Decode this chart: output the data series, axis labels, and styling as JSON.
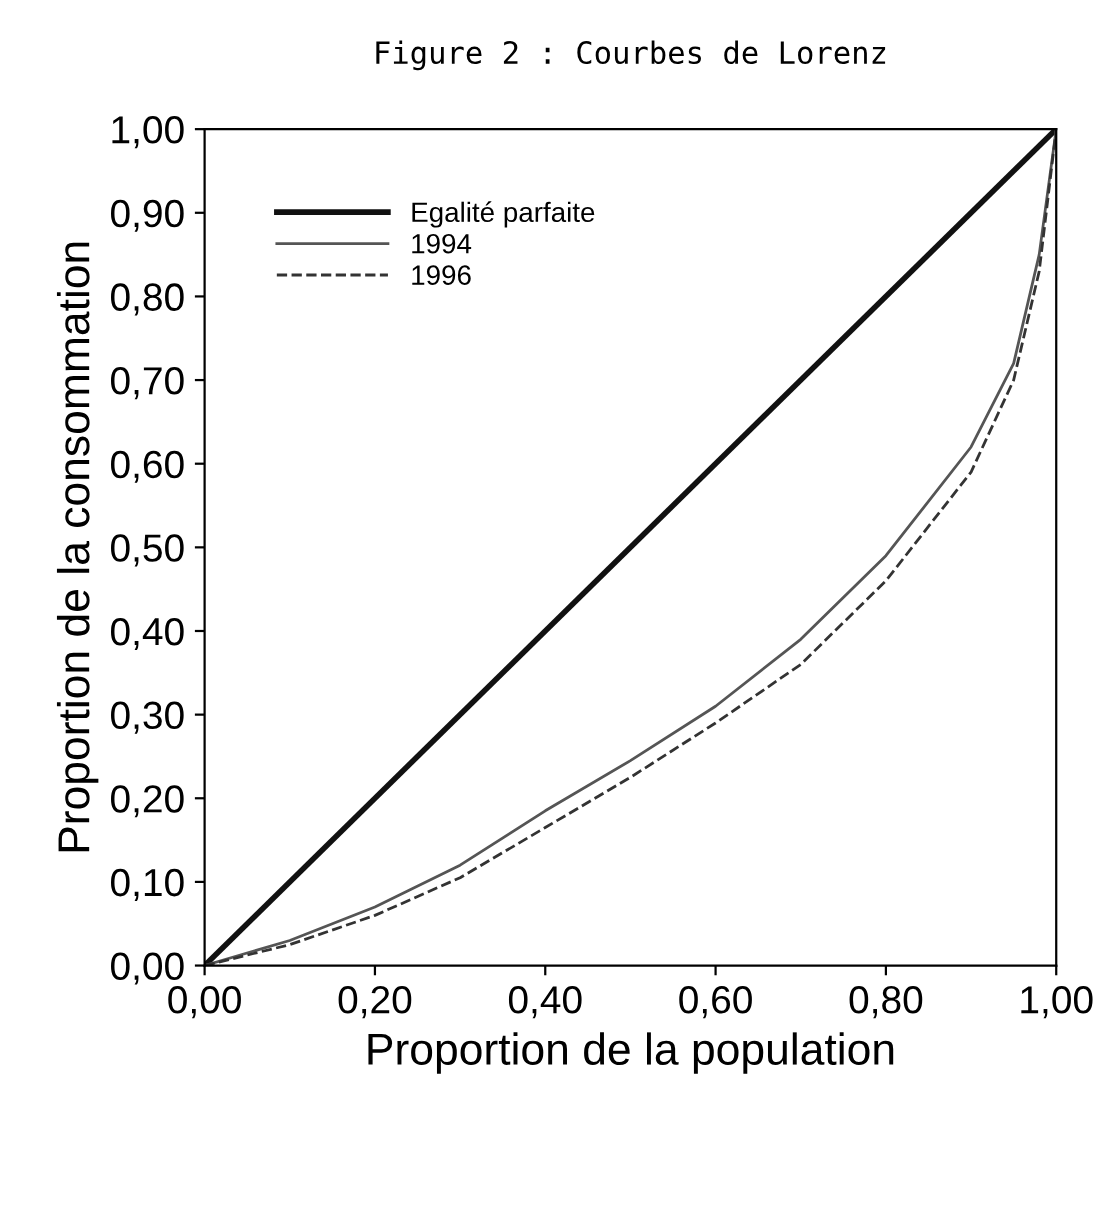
{
  "chart_data": {
    "type": "line",
    "title": "Figure 2 : Courbes de Lorenz",
    "xlabel": "Proportion de la population",
    "ylabel": "Proportion de la consommation",
    "series": [
      {
        "name": "Egalité parfaite",
        "color": "#111111",
        "x": [
          0,
          1
        ],
        "values": [
          0,
          1
        ]
      },
      {
        "name": "1994",
        "color": "#555555",
        "x": [
          0,
          0.1,
          0.2,
          0.3,
          0.4,
          0.5,
          0.6,
          0.7,
          0.8,
          0.9,
          0.95,
          0.98,
          1
        ],
        "values": [
          0,
          0.03,
          0.07,
          0.12,
          0.185,
          0.245,
          0.31,
          0.39,
          0.49,
          0.62,
          0.72,
          0.85,
          1
        ]
      },
      {
        "name": "1996",
        "color": "#333333",
        "line_style": "dashed",
        "x": [
          0,
          0.1,
          0.2,
          0.3,
          0.4,
          0.5,
          0.6,
          0.7,
          0.8,
          0.9,
          0.95,
          0.98,
          1
        ],
        "values": [
          0,
          0.025,
          0.06,
          0.105,
          0.165,
          0.225,
          0.29,
          0.36,
          0.46,
          0.59,
          0.7,
          0.83,
          1
        ]
      }
    ],
    "xlim": [
      0,
      1
    ],
    "ylim": [
      0,
      1
    ],
    "xticks": [
      {
        "value": 0,
        "label": "0,00"
      },
      {
        "value": 0.2,
        "label": "0,20"
      },
      {
        "value": 0.4,
        "label": "0,40"
      },
      {
        "value": 0.6,
        "label": "0,60"
      },
      {
        "value": 0.8,
        "label": "0,80"
      },
      {
        "value": 1,
        "label": "1,00"
      }
    ],
    "yticks": [
      {
        "value": 0,
        "label": "0,00"
      },
      {
        "value": 0.1,
        "label": "0,10"
      },
      {
        "value": 0.2,
        "label": "0,20"
      },
      {
        "value": 0.3,
        "label": "0,30"
      },
      {
        "value": 0.4,
        "label": "0,40"
      },
      {
        "value": 0.5,
        "label": "0,50"
      },
      {
        "value": 0.6,
        "label": "0,60"
      },
      {
        "value": 0.7,
        "label": "0,70"
      },
      {
        "value": 0.8,
        "label": "0,80"
      },
      {
        "value": 0.9,
        "label": "0,90"
      },
      {
        "value": 1,
        "label": "1,00"
      }
    ],
    "legend": "top left",
    "grid": false
  }
}
